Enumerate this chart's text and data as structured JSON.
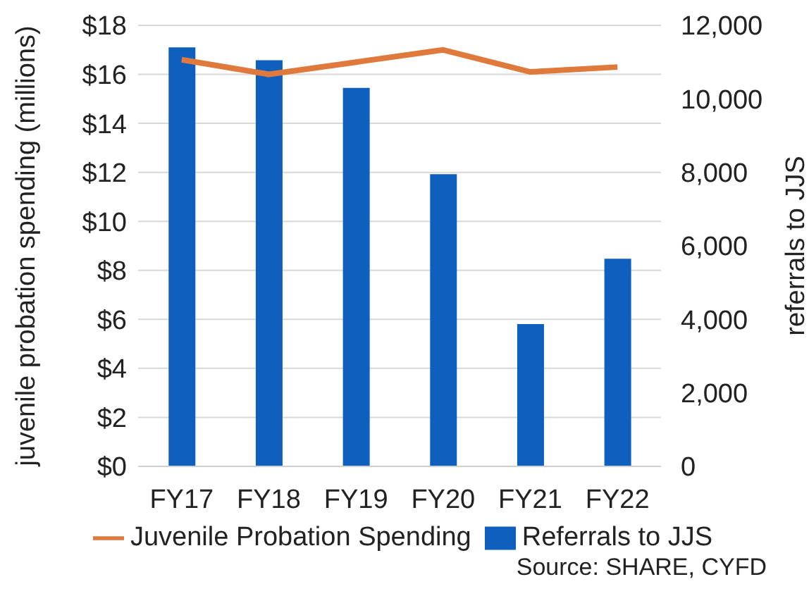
{
  "chart_data": {
    "type": "bar",
    "categories": [
      "FY17",
      "FY18",
      "FY19",
      "FY20",
      "FY21",
      "FY22"
    ],
    "series": [
      {
        "name": "Referrals to JJS",
        "axis": "y2",
        "color": "#0f5fbf",
        "values": [
          11400,
          11050,
          10300,
          7950,
          3870,
          5650
        ]
      },
      {
        "name": "Juvenile Probation Spending",
        "type": "line",
        "color": "#e07a3c",
        "values": [
          16.6,
          16.0,
          16.5,
          17.0,
          16.1,
          16.3
        ]
      }
    ],
    "ylabel": "juvenile probation spending (millions)",
    "y2label": "referrals to JJS",
    "ylim": [
      0,
      18
    ],
    "yticks": [
      {
        "value": 0,
        "label": "$0"
      },
      {
        "value": 2,
        "label": "$2"
      },
      {
        "value": 4,
        "label": "$4"
      },
      {
        "value": 6,
        "label": "$6"
      },
      {
        "value": 8,
        "label": "$8"
      },
      {
        "value": 10,
        "label": "$10"
      },
      {
        "value": 12,
        "label": "$12"
      },
      {
        "value": 14,
        "label": "$14"
      },
      {
        "value": 16,
        "label": "$16"
      },
      {
        "value": 18,
        "label": "$18"
      }
    ],
    "y2lim": [
      0,
      12000
    ],
    "y2ticks": [
      {
        "value": 0,
        "label": "0"
      },
      {
        "value": 2000,
        "label": "2,000"
      },
      {
        "value": 4000,
        "label": "4,000"
      },
      {
        "value": 6000,
        "label": "6,000"
      },
      {
        "value": 8000,
        "label": "8,000"
      },
      {
        "value": 10000,
        "label": "10,000"
      },
      {
        "value": 12000,
        "label": "12,000"
      }
    ],
    "grid": "y",
    "legend": "bottom",
    "marker": "none",
    "annotations": [
      "Source: SHARE, CYFD"
    ]
  }
}
